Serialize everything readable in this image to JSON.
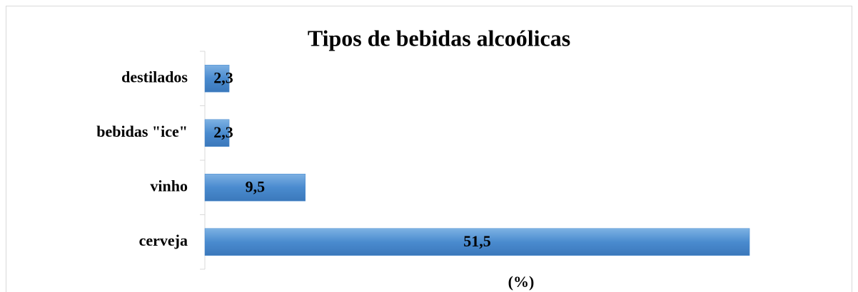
{
  "chart_data": {
    "type": "barh",
    "title": "Tipos de bebidas alcoólicas",
    "categories": [
      "destilados",
      "bebidas \"ice\"",
      "vinho",
      "cerveja"
    ],
    "values": [
      2.3,
      2.3,
      9.5,
      51.5
    ],
    "value_labels": [
      "2,3",
      "2,3",
      "9,5",
      "51,5"
    ],
    "color": "#4a8bcf",
    "xlabel": "(%)",
    "xlim": [
      0,
      60
    ]
  }
}
